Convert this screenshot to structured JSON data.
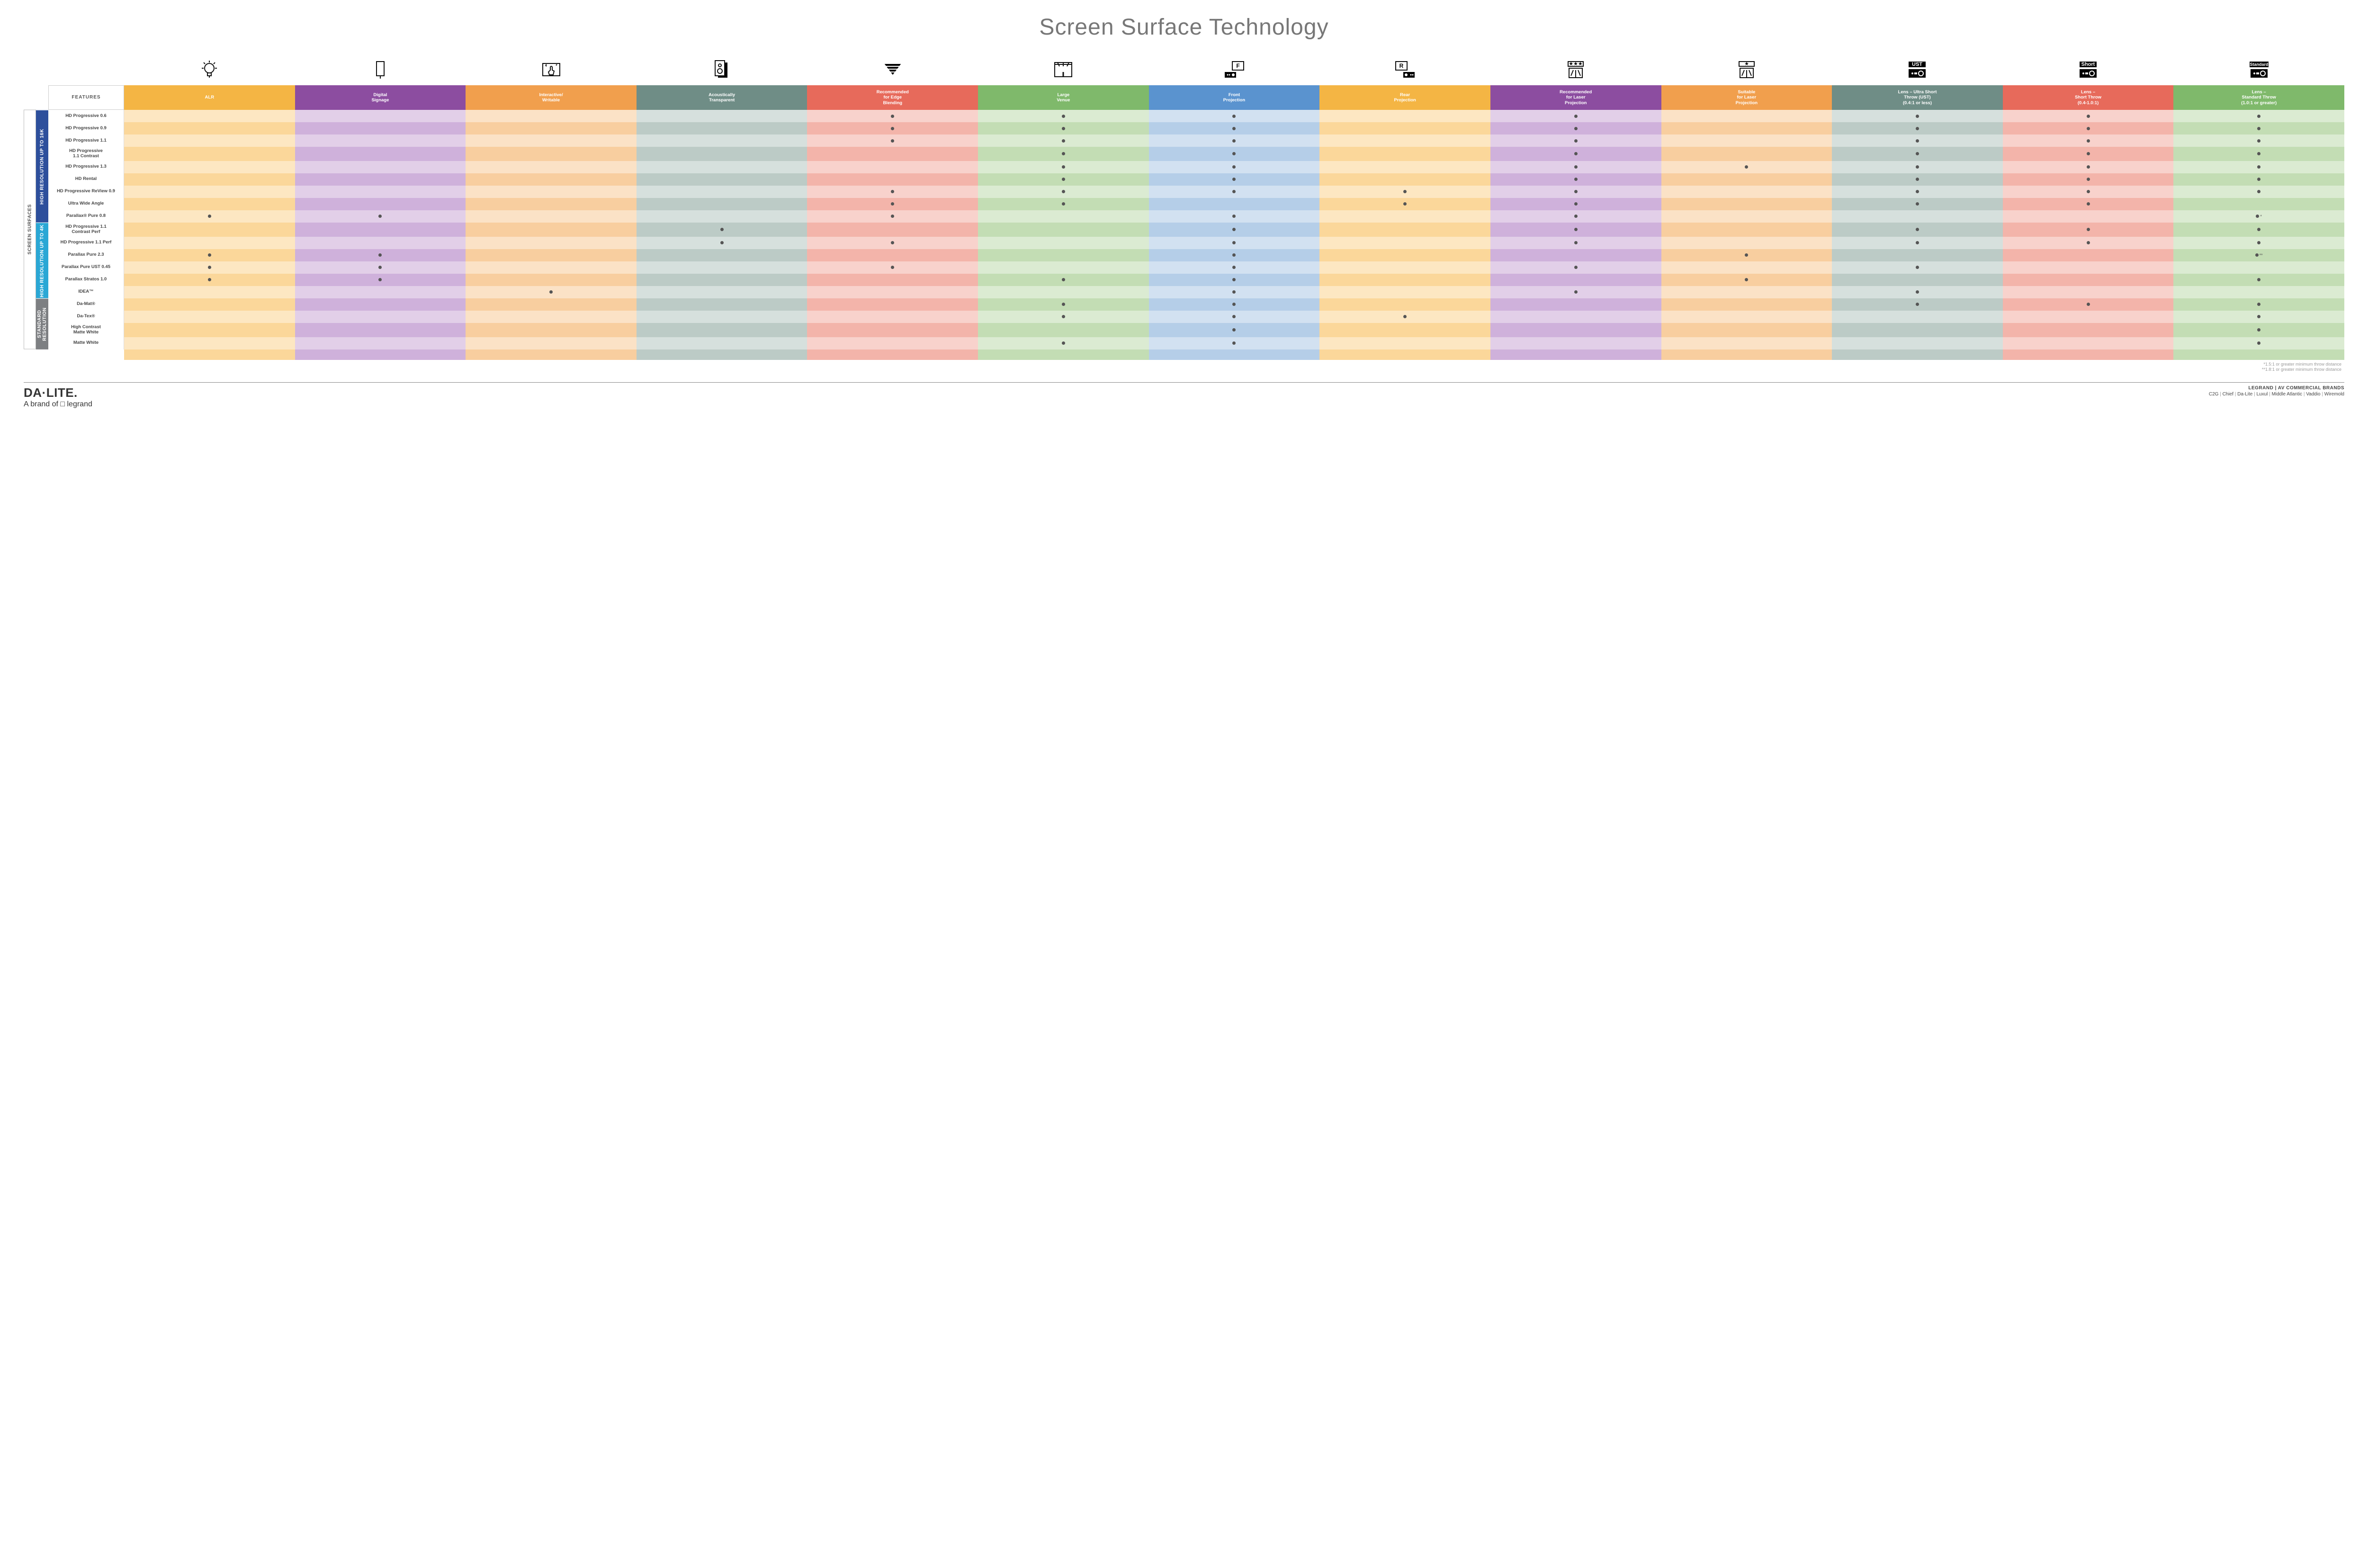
{
  "title": "Screen Surface Technology",
  "features_header": "FEATURES",
  "side_outer_label": "SCREEN SURFACES",
  "columns": [
    {
      "key": "alr",
      "label": "ALR",
      "color": "#f4b544",
      "tints": [
        "#fde7c2",
        "#fbd79a"
      ]
    },
    {
      "key": "dsig",
      "label": "Digital\nSignage",
      "color": "#8c4da0",
      "tints": [
        "#e2cfe8",
        "#cfb1db"
      ]
    },
    {
      "key": "interact",
      "label": "Interactive/\nWritable",
      "color": "#f19f4d",
      "tints": [
        "#fbe2c6",
        "#f8ce9f"
      ]
    },
    {
      "key": "acoust",
      "label": "Acoustically\nTransparent",
      "color": "#6f8d86",
      "tints": [
        "#d6e0dd",
        "#bccbc6"
      ]
    },
    {
      "key": "edge",
      "label": "Recommended\nfor Edge\nBlending",
      "color": "#e76a5b",
      "tints": [
        "#f8d2cc",
        "#f3b4aa"
      ]
    },
    {
      "key": "large",
      "label": "Large\nVenue",
      "color": "#7fb96b",
      "tints": [
        "#dbebd2",
        "#c3ddb4"
      ]
    },
    {
      "key": "front",
      "label": "Front\nProjection",
      "color": "#5a93cf",
      "tints": [
        "#d2e1f1",
        "#b5cee8"
      ]
    },
    {
      "key": "rear",
      "label": "Rear\nProjection",
      "color": "#f4b544",
      "tints": [
        "#fde7c2",
        "#fbd79a"
      ]
    },
    {
      "key": "reclaser",
      "label": "Recommended\nfor Laser\nProjection",
      "color": "#8c4da0",
      "tints": [
        "#e2cfe8",
        "#cfb1db"
      ]
    },
    {
      "key": "suitlaser",
      "label": "Suitable\nfor Laser\nProjection",
      "color": "#f19f4d",
      "tints": [
        "#fbe2c6",
        "#f8ce9f"
      ]
    },
    {
      "key": "ust",
      "label": "Lens – Ultra Short\nThrow (UST)\n(0.4:1 or less)",
      "color": "#6f8d86",
      "tints": [
        "#d6e0dd",
        "#bccbc6"
      ]
    },
    {
      "key": "short",
      "label": "Lens –\nShort Throw\n(0.4-1.0:1)",
      "color": "#e76a5b",
      "tints": [
        "#f8d2cc",
        "#f3b4aa"
      ]
    },
    {
      "key": "std",
      "label": "Lens –\nStandard Throw\n(1.0:1 or greater)",
      "color": "#7fb96b",
      "tints": [
        "#dbebd2",
        "#c3ddb4"
      ]
    }
  ],
  "groups": [
    {
      "key": "hi16k",
      "label": "HIGH RESOLUTION UP TO 16K",
      "color": "#2d4f9c",
      "rows": [
        {
          "name": "HD Progressive 0.6",
          "dots": {
            "edge": "•",
            "large": "•",
            "front": "•",
            "reclaser": "•",
            "ust": "•",
            "short": "•",
            "std": "•"
          }
        },
        {
          "name": "HD Progressive 0.9",
          "dots": {
            "edge": "•",
            "large": "•",
            "front": "•",
            "reclaser": "•",
            "ust": "•",
            "short": "•",
            "std": "•"
          }
        },
        {
          "name": "HD Progressive 1.1",
          "dots": {
            "edge": "•",
            "large": "•",
            "front": "•",
            "reclaser": "•",
            "ust": "•",
            "short": "•",
            "std": "•"
          }
        },
        {
          "name": "HD Progressive\n1.1 Contrast",
          "dots": {
            "large": "•",
            "front": "•",
            "reclaser": "•",
            "ust": "•",
            "short": "•",
            "std": "•"
          }
        },
        {
          "name": "HD Progressive 1.3",
          "dots": {
            "large": "•",
            "front": "•",
            "reclaser": "•",
            "suitlaser": "•",
            "ust": "•",
            "short": "•",
            "std": "•"
          }
        },
        {
          "name": "HD Rental",
          "dots": {
            "large": "•",
            "front": "•",
            "reclaser": "•",
            "ust": "•",
            "short": "•",
            "std": "•"
          }
        },
        {
          "name": "HD Progressive ReView 0.9",
          "dots": {
            "edge": "•",
            "large": "•",
            "front": "•",
            "rear": "•",
            "reclaser": "•",
            "ust": "•",
            "short": "•",
            "std": "•"
          }
        },
        {
          "name": "Ultra Wide Angle",
          "dots": {
            "edge": "•",
            "large": "•",
            "rear": "•",
            "reclaser": "•",
            "ust": "•",
            "short": "•"
          }
        },
        {
          "name": "Parallax® Pure 0.8",
          "dots": {
            "alr": "•",
            "dsig": "•",
            "edge": "•",
            "front": "•",
            "reclaser": "•",
            "std": "•"
          },
          "suffix": {
            "std": "*"
          }
        }
      ]
    },
    {
      "key": "hi4k",
      "label": "HIGH RESOLUTION UP TO 4K",
      "color": "#2aa7d5",
      "rows": [
        {
          "name": "HD Progressive 1.1\nContrast Perf",
          "dots": {
            "acoust": "•",
            "front": "•",
            "reclaser": "•",
            "ust": "•",
            "short": "•",
            "std": "•"
          }
        },
        {
          "name": "HD Progressive 1.1 Perf",
          "dots": {
            "acoust": "•",
            "edge": "•",
            "front": "•",
            "reclaser": "•",
            "ust": "•",
            "short": "•",
            "std": "•"
          }
        },
        {
          "name": "Parallax Pure 2.3",
          "dots": {
            "alr": "•",
            "dsig": "•",
            "front": "•",
            "suitlaser": "•",
            "std": "•"
          },
          "suffix": {
            "std": "**"
          }
        },
        {
          "name": "Parallax Pure UST 0.45",
          "dots": {
            "alr": "•",
            "dsig": "•",
            "edge": "•",
            "front": "•",
            "reclaser": "•",
            "ust": "•"
          }
        },
        {
          "name": "Parallax Stratos 1.0",
          "dots": {
            "alr": "•",
            "dsig": "•",
            "large": "•",
            "front": "•",
            "suitlaser": "•",
            "std": "•"
          }
        },
        {
          "name": "IDEA™",
          "dots": {
            "interact": "•",
            "front": "•",
            "reclaser": "•",
            "ust": "•"
          }
        }
      ]
    },
    {
      "key": "stdres",
      "label": "STANDARD\nRESOLUTION",
      "color": "#7d7f82",
      "rows": [
        {
          "name": "Da-Mat®",
          "dots": {
            "large": "•",
            "front": "•",
            "ust": "•",
            "short": "•",
            "std": "•"
          }
        },
        {
          "name": "Da-Tex®",
          "dots": {
            "large": "•",
            "front": "•",
            "rear": "•",
            "std": "•"
          }
        },
        {
          "name": "High Contrast\nMatte White",
          "dots": {
            "front": "•",
            "std": "•"
          }
        },
        {
          "name": "Matte White",
          "dots": {
            "large": "•",
            "front": "•",
            "std": "•"
          }
        }
      ]
    }
  ],
  "footnotes": [
    "*1.5:1 or greater minimum throw distance",
    "**1.8:1 or greater minimum throw distance"
  ],
  "footer": {
    "logo_main": "DA·LITE.",
    "logo_sub_prefix": "A brand of ",
    "logo_sub_brand": "legrand",
    "right_title": "LEGRAND | AV COMMERCIAL BRANDS",
    "brands": [
      "C2G",
      "Chief",
      "Da-Lite",
      "Luxul",
      "Middle Atlantic",
      "Vaddio",
      "Wiremold"
    ]
  },
  "icons": [
    "bulb",
    "pull",
    "touch",
    "speaker",
    "wedge",
    "stage",
    "front",
    "rear",
    "stars",
    "star",
    "ust",
    "short",
    "standard"
  ]
}
